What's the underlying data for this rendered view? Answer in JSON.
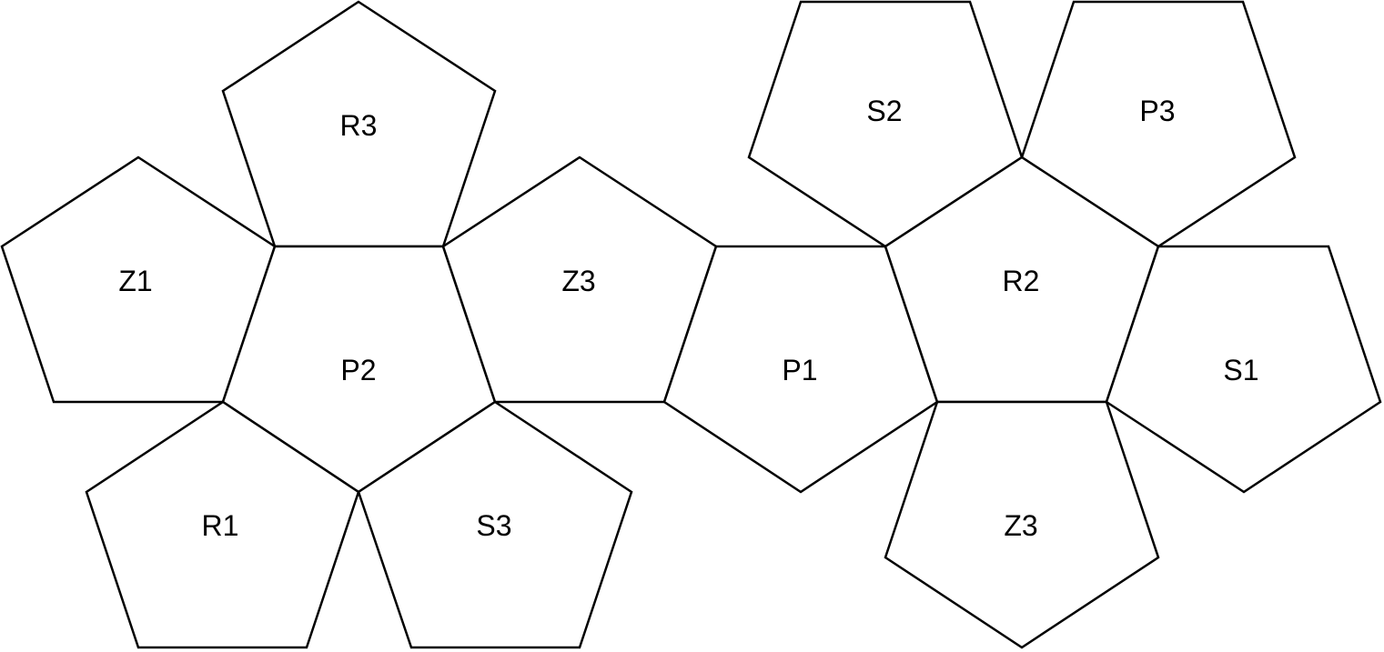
{
  "faces": [
    {
      "id": "face-r3",
      "label": "R3"
    },
    {
      "id": "face-z1",
      "label": "Z1"
    },
    {
      "id": "face-p2",
      "label": "P2"
    },
    {
      "id": "face-z3-left",
      "label": "Z3"
    },
    {
      "id": "face-r1",
      "label": "R1"
    },
    {
      "id": "face-s3",
      "label": "S3"
    },
    {
      "id": "face-p1",
      "label": "P1"
    },
    {
      "id": "face-s2",
      "label": "S2"
    },
    {
      "id": "face-p3",
      "label": "P3"
    },
    {
      "id": "face-r2",
      "label": "R2"
    },
    {
      "id": "face-s1",
      "label": "S1"
    },
    {
      "id": "face-z3-right",
      "label": "Z3"
    }
  ]
}
